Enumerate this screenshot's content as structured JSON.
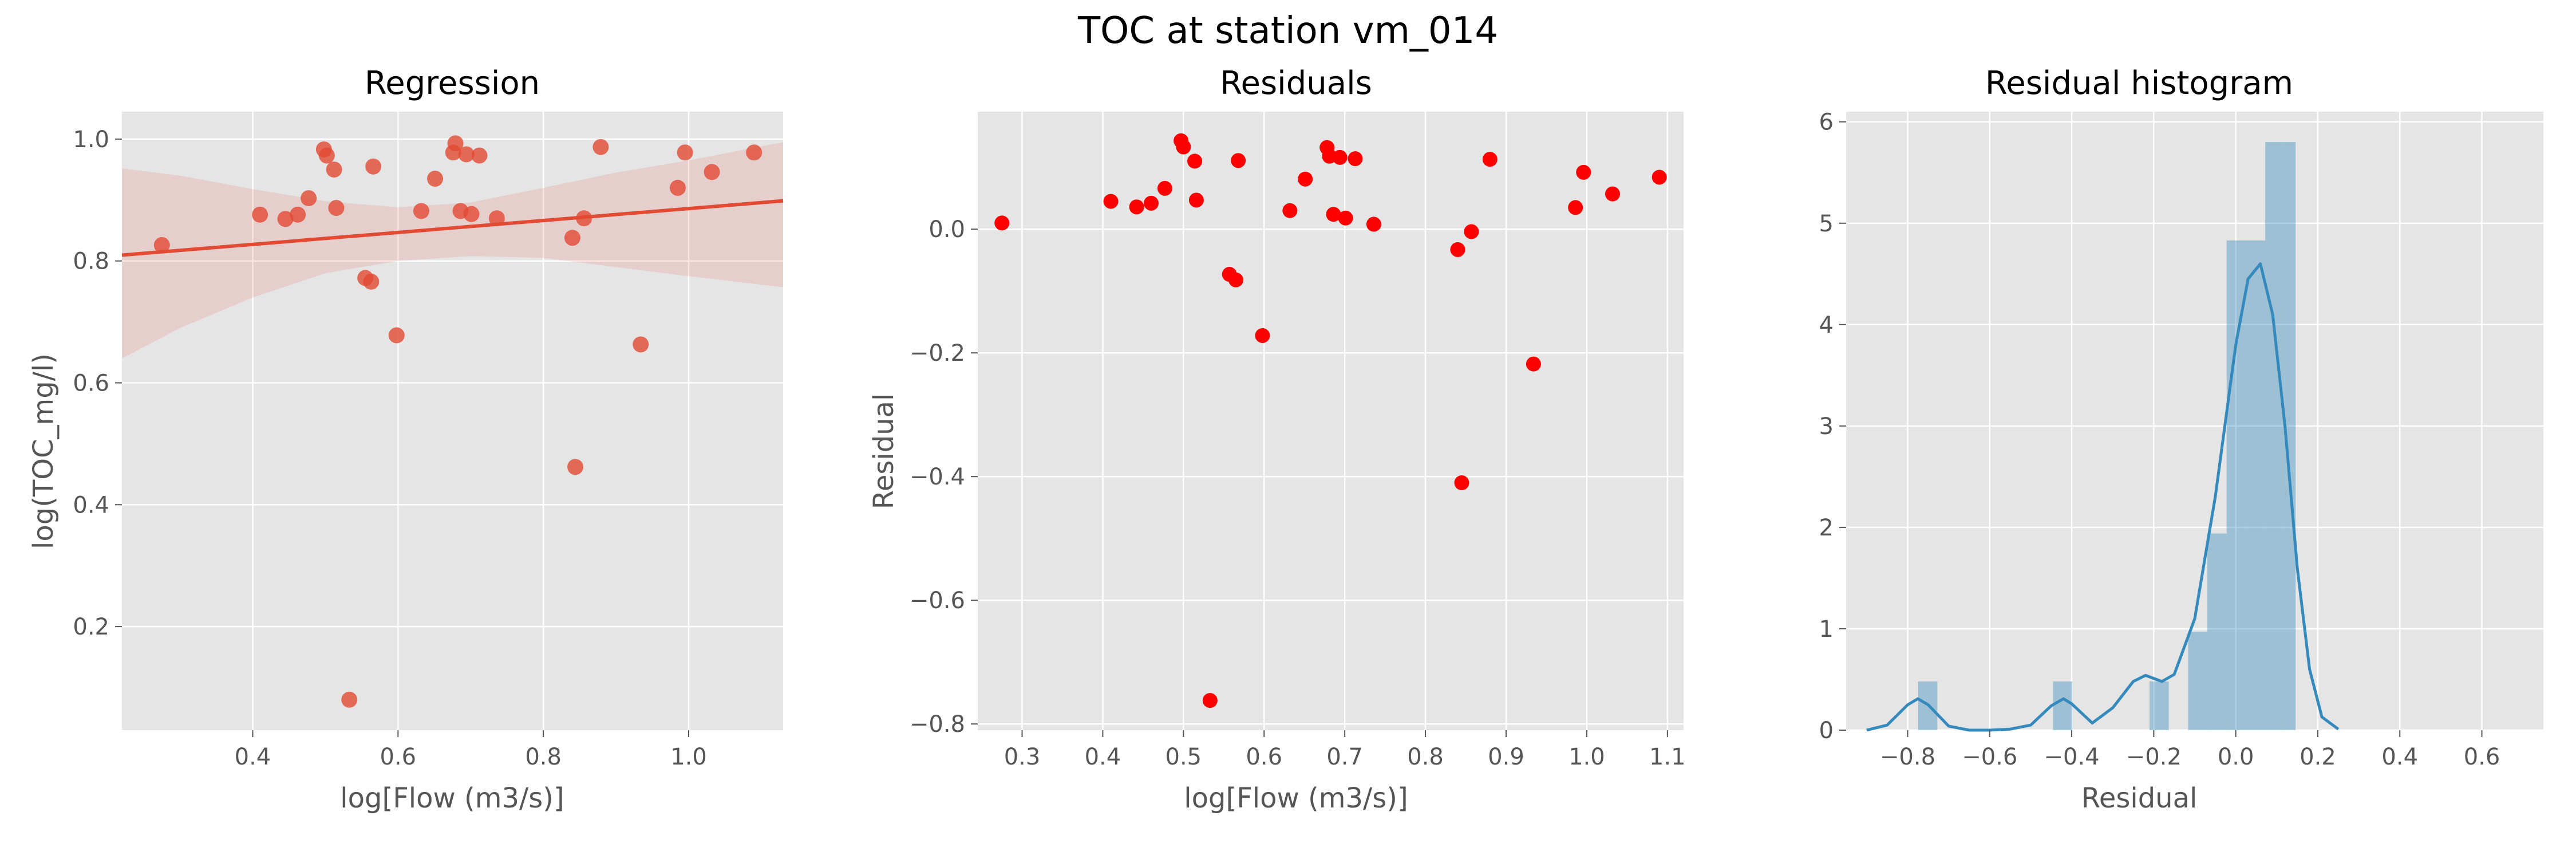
{
  "figure": {
    "title": "TOC at station vm_014"
  },
  "chart_data": [
    {
      "type": "scatter",
      "title": "Regression",
      "xlabel": "log[Flow (m3/s)]",
      "ylabel": "log(TOC_mg/l)",
      "xlim": [
        0.22,
        1.13
      ],
      "ylim": [
        0.03,
        1.045
      ],
      "xticks": [
        0.4,
        0.6,
        0.8,
        1.0
      ],
      "yticks": [
        0.2,
        0.4,
        0.6,
        0.8,
        1.0
      ],
      "grid": true,
      "point_color": "#E24A33",
      "fit": {
        "intercept": 0.788,
        "slope": 0.098,
        "color": "#E24A33"
      },
      "band": {
        "x": [
          0.22,
          0.3,
          0.4,
          0.5,
          0.6,
          0.7,
          0.8,
          0.9,
          1.0,
          1.13
        ],
        "upper": [
          0.952,
          0.94,
          0.918,
          0.898,
          0.888,
          0.896,
          0.92,
          0.945,
          0.965,
          0.995
        ],
        "lower": [
          0.64,
          0.69,
          0.74,
          0.78,
          0.8,
          0.808,
          0.805,
          0.79,
          0.775,
          0.757
        ]
      },
      "points": [
        [
          0.275,
          0.826
        ],
        [
          0.41,
          0.876
        ],
        [
          0.445,
          0.869
        ],
        [
          0.462,
          0.876
        ],
        [
          0.477,
          0.903
        ],
        [
          0.498,
          0.983
        ],
        [
          0.502,
          0.973
        ],
        [
          0.512,
          0.95
        ],
        [
          0.515,
          0.887
        ],
        [
          0.533,
          0.08
        ],
        [
          0.555,
          0.772
        ],
        [
          0.563,
          0.766
        ],
        [
          0.566,
          0.955
        ],
        [
          0.598,
          0.678
        ],
        [
          0.632,
          0.882
        ],
        [
          0.651,
          0.935
        ],
        [
          0.676,
          0.978
        ],
        [
          0.679,
          0.993
        ],
        [
          0.686,
          0.882
        ],
        [
          0.694,
          0.975
        ],
        [
          0.701,
          0.877
        ],
        [
          0.712,
          0.973
        ],
        [
          0.736,
          0.87
        ],
        [
          0.84,
          0.838
        ],
        [
          0.844,
          0.462
        ],
        [
          0.856,
          0.87
        ],
        [
          0.879,
          0.987
        ],
        [
          0.934,
          0.663
        ],
        [
          0.985,
          0.92
        ],
        [
          0.995,
          0.978
        ],
        [
          1.032,
          0.946
        ],
        [
          1.09,
          0.978
        ]
      ]
    },
    {
      "type": "scatter",
      "title": "Residuals",
      "xlabel": "log[Flow (m3/s)]",
      "ylabel": "Residual",
      "xlim": [
        0.245,
        1.12
      ],
      "ylim": [
        -0.81,
        0.19
      ],
      "xticks": [
        0.3,
        0.4,
        0.5,
        0.6,
        0.7,
        0.8,
        0.9,
        1.0,
        1.1
      ],
      "yticks": [
        -0.8,
        -0.6,
        -0.4,
        -0.2,
        0.0
      ],
      "grid": true,
      "point_color": "#FF0000",
      "points": [
        [
          0.275,
          0.01
        ],
        [
          0.41,
          0.045
        ],
        [
          0.442,
          0.036
        ],
        [
          0.46,
          0.042
        ],
        [
          0.477,
          0.066
        ],
        [
          0.497,
          0.143
        ],
        [
          0.5,
          0.133
        ],
        [
          0.514,
          0.11
        ],
        [
          0.516,
          0.047
        ],
        [
          0.533,
          -0.762
        ],
        [
          0.557,
          -0.073
        ],
        [
          0.565,
          -0.082
        ],
        [
          0.568,
          0.111
        ],
        [
          0.598,
          -0.172
        ],
        [
          0.632,
          0.03
        ],
        [
          0.651,
          0.081
        ],
        [
          0.678,
          0.132
        ],
        [
          0.681,
          0.118
        ],
        [
          0.686,
          0.024
        ],
        [
          0.694,
          0.116
        ],
        [
          0.701,
          0.018
        ],
        [
          0.713,
          0.114
        ],
        [
          0.736,
          0.008
        ],
        [
          0.84,
          -0.033
        ],
        [
          0.845,
          -0.41
        ],
        [
          0.857,
          -0.004
        ],
        [
          0.88,
          0.113
        ],
        [
          0.934,
          -0.218
        ],
        [
          0.986,
          0.035
        ],
        [
          0.996,
          0.092
        ],
        [
          1.032,
          0.057
        ],
        [
          1.09,
          0.084
        ]
      ]
    },
    {
      "type": "bar",
      "title": "Residual histogram",
      "xlabel": "Residual",
      "ylabel": "",
      "xlim": [
        -0.95,
        0.75
      ],
      "ylim": [
        0,
        6.1
      ],
      "xticks": [
        -0.8,
        -0.6,
        -0.4,
        -0.2,
        0.0,
        0.2,
        0.4,
        0.6
      ],
      "yticks": [
        0,
        1,
        2,
        3,
        4,
        5,
        6
      ],
      "grid": true,
      "bar_color": "#348ABD",
      "bins": [
        [
          -0.7745,
          -0.7275,
          0.48
        ],
        [
          -0.4455,
          -0.3985,
          0.48
        ],
        [
          -0.2103,
          -0.1633,
          0.48
        ],
        [
          -0.1162,
          -0.0692,
          0.97
        ],
        [
          -0.0692,
          -0.0222,
          1.94
        ],
        [
          -0.0222,
          0.0248,
          4.83
        ],
        [
          0.0248,
          0.0718,
          4.83
        ],
        [
          0.0718,
          0.1188,
          5.8
        ],
        [
          0.1188,
          0.146,
          5.8
        ]
      ],
      "kde": {
        "color": "#348ABD",
        "x": [
          -0.9,
          -0.85,
          -0.8,
          -0.775,
          -0.75,
          -0.7,
          -0.65,
          -0.6,
          -0.55,
          -0.5,
          -0.45,
          -0.42,
          -0.4,
          -0.35,
          -0.3,
          -0.25,
          -0.22,
          -0.18,
          -0.15,
          -0.1,
          -0.05,
          0.0,
          0.03,
          0.06,
          0.09,
          0.12,
          0.15,
          0.18,
          0.21,
          0.25
        ],
        "y": [
          0.0,
          0.05,
          0.25,
          0.31,
          0.25,
          0.04,
          0.0,
          0.0,
          0.01,
          0.05,
          0.24,
          0.31,
          0.26,
          0.07,
          0.22,
          0.48,
          0.54,
          0.48,
          0.55,
          1.1,
          2.3,
          3.8,
          4.45,
          4.6,
          4.1,
          3.0,
          1.6,
          0.6,
          0.13,
          0.01
        ]
      }
    }
  ]
}
